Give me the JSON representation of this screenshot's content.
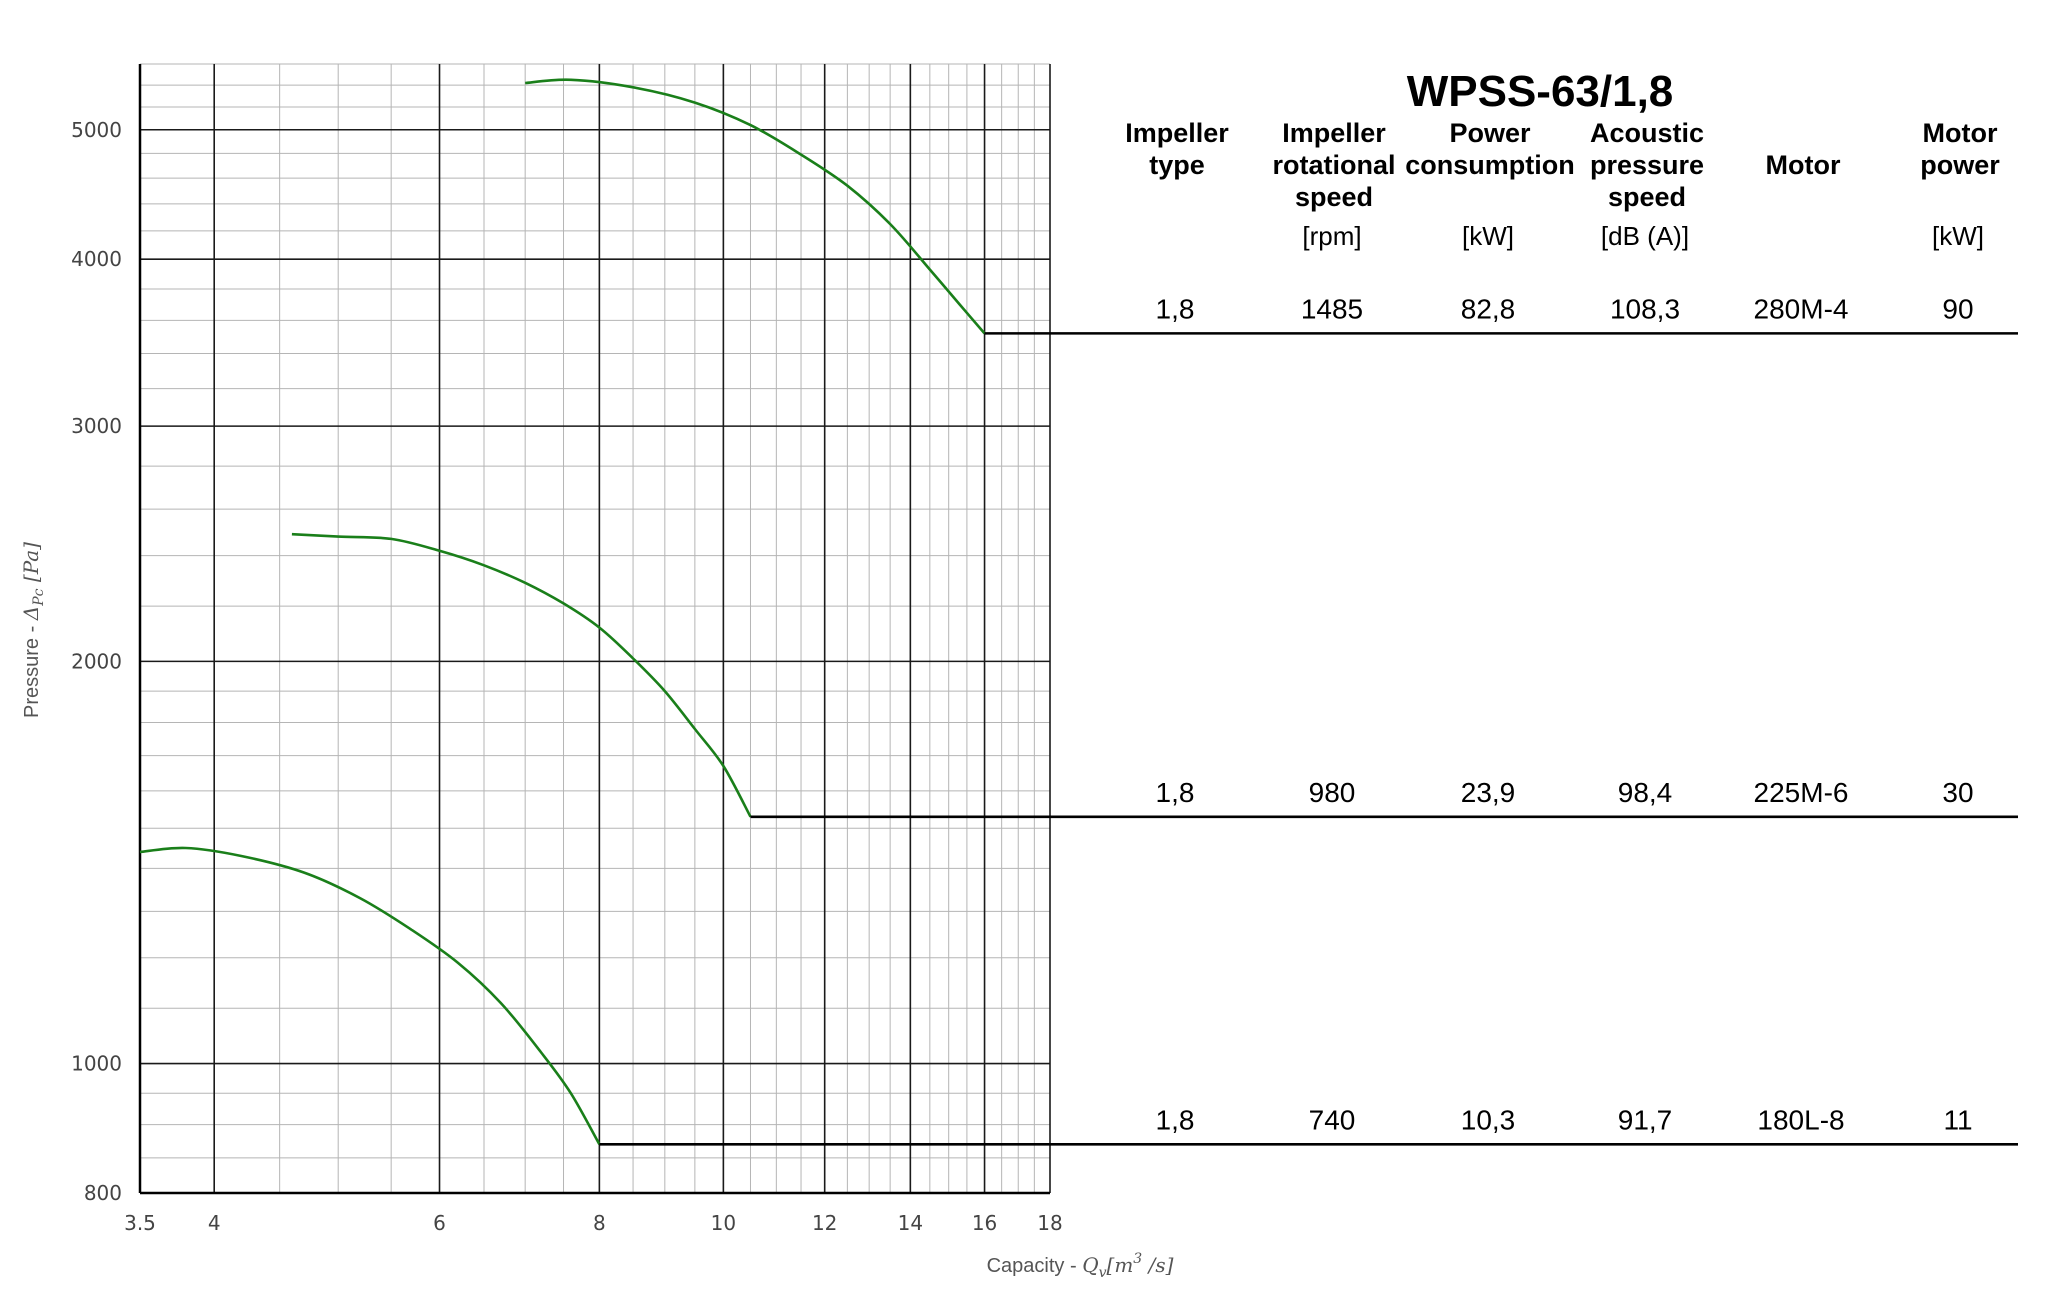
{
  "model_title": "WPSS-63/1,8",
  "columns": [
    {
      "header": [
        "Impeller",
        "type"
      ],
      "unit": ""
    },
    {
      "header": [
        "Impeller",
        "rotational",
        "speed"
      ],
      "unit": "[rpm]"
    },
    {
      "header": [
        "Power",
        "consumption"
      ],
      "unit": "[kW]"
    },
    {
      "header": [
        "Acoustic",
        "pressure",
        "speed"
      ],
      "unit": "[dB (A)]"
    },
    {
      "header": [
        "Motor"
      ],
      "unit": ""
    },
    {
      "header": [
        "Motor",
        "power"
      ],
      "unit": "[kW]"
    }
  ],
  "rows": [
    {
      "cells": [
        "1,8",
        "1485",
        "82,8",
        "108,3",
        "280M-4",
        "90"
      ]
    },
    {
      "cells": [
        "1,8",
        "980",
        "23,9",
        "98,4",
        "225M-6",
        "30"
      ]
    },
    {
      "cells": [
        "1,8",
        "740",
        "10,3",
        "91,7",
        "180L-8",
        "11"
      ]
    }
  ],
  "chart_data": {
    "type": "line",
    "x_scale": "log",
    "y_scale": "log",
    "xlim": [
      3.5,
      18
    ],
    "ylim": [
      800,
      5600
    ],
    "x_ticks": [
      3.5,
      4,
      6,
      8,
      10,
      12,
      14,
      16,
      18
    ],
    "x_tick_labels": [
      "3.5",
      "4",
      "6",
      "8",
      "10",
      "12",
      "14",
      "16",
      "18"
    ],
    "y_ticks": [
      800,
      1000,
      2000,
      3000,
      4000,
      5000
    ],
    "y_tick_labels": [
      "800",
      "1000",
      "2000",
      "3000",
      "4000",
      "5000"
    ],
    "xlabel": "Capacity - ",
    "xlabel_math": "Q",
    "xlabel_sub": "v",
    "xlabel_unit": "[m",
    "xlabel_sup": "3",
    "xlabel_unit_end": " /s]",
    "ylabel": "Pressure - ",
    "ylabel_math": "Δ",
    "ylabel_sub": "Pc",
    "ylabel_unit": " [Pa]",
    "grid": true,
    "line_color": "#1a7f1a",
    "series": [
      {
        "x": [
          7.0,
          7.6,
          8.5,
          9.5,
          10.5,
          11.5,
          12.5,
          13.5,
          14.5,
          15.3,
          16.0
        ],
        "y": [
          5420,
          5450,
          5380,
          5240,
          5040,
          4790,
          4540,
          4250,
          3930,
          3700,
          3520
        ]
      },
      {
        "x": [
          4.6,
          5.0,
          5.5,
          6.0,
          6.5,
          7.0,
          7.5,
          8.0,
          8.5,
          9.0,
          9.5,
          10.0,
          10.5
        ],
        "y": [
          2490,
          2480,
          2470,
          2420,
          2360,
          2290,
          2210,
          2120,
          2010,
          1900,
          1780,
          1670,
          1530
        ]
      },
      {
        "x": [
          3.5,
          3.8,
          4.2,
          4.7,
          5.2,
          5.7,
          6.2,
          6.7,
          7.2,
          7.6,
          8.0
        ],
        "y": [
          1440,
          1450,
          1430,
          1390,
          1330,
          1260,
          1190,
          1110,
          1020,
          950,
          870
        ]
      }
    ],
    "operating_lines": [
      {
        "from_x": 16.0,
        "y": 3520
      },
      {
        "from_x": 10.5,
        "y": 1530
      },
      {
        "from_x": 8.0,
        "y": 870
      }
    ]
  }
}
